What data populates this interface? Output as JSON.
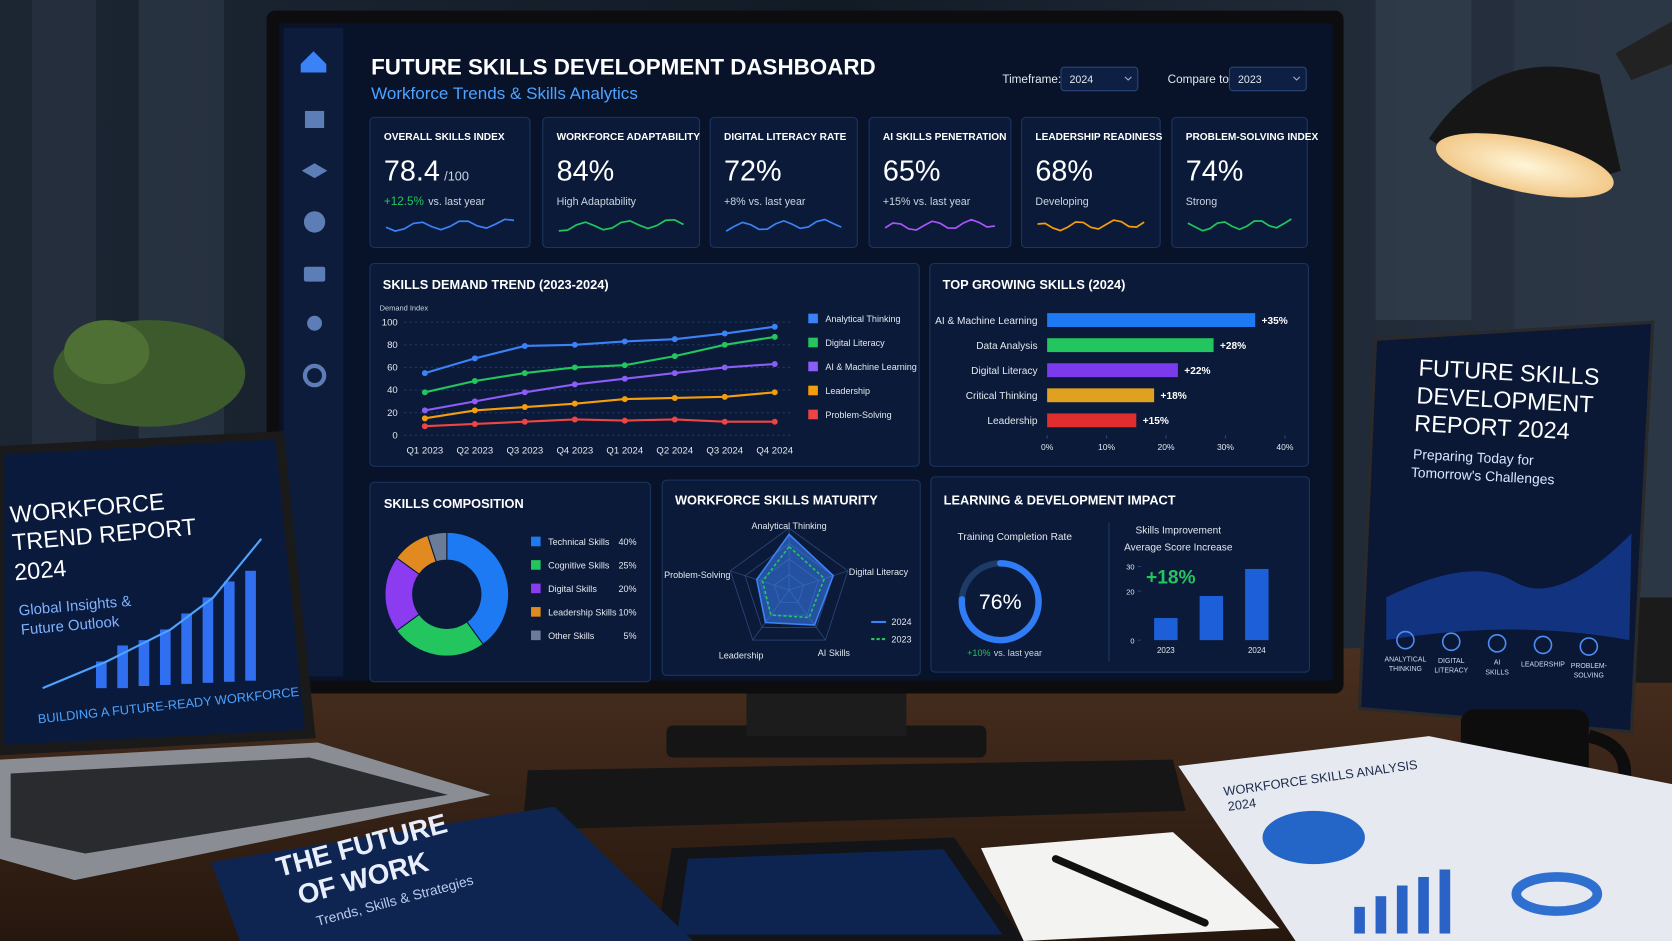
{
  "dashboard": {
    "title": "FUTURE SKILLS DEVELOPMENT DASHBOARD",
    "subtitle": "Workforce Trends & Skills Analytics",
    "filters": [
      {
        "label": "Timeframe:",
        "value": "2024"
      },
      {
        "label": "Compare to:",
        "value": "2023"
      }
    ],
    "kpis": [
      {
        "label": "OVERALL SKILLS INDEX",
        "value": "78.4",
        "unit": "/100",
        "delta": "+12.5%",
        "note": "vs. last year",
        "color": "#3b82f6"
      },
      {
        "label": "WORKFORCE ADAPTABILITY",
        "value": "84%",
        "note": "High Adaptability",
        "color": "#22c55e"
      },
      {
        "label": "DIGITAL LITERACY RATE",
        "value": "72%",
        "note": "+8% vs. last year",
        "color": "#3b82f6"
      },
      {
        "label": "AI SKILLS PENETRATION",
        "value": "65%",
        "note": "+15% vs. last year",
        "color": "#a855f7"
      },
      {
        "label": "LEADERSHIP READINESS",
        "value": "68%",
        "note": "Developing",
        "color": "#f59e0b"
      },
      {
        "label": "PROBLEM-SOLVING INDEX",
        "value": "74%",
        "note": "Strong",
        "color": "#22c55e"
      }
    ],
    "trend": {
      "type": "line",
      "title": "SKILLS DEMAND TREND (2023-2024)",
      "y_label": "Demand Index",
      "categories": [
        "Q1 2023",
        "Q2 2023",
        "Q3 2023",
        "Q4 2023",
        "Q1 2024",
        "Q2 2024",
        "Q3 2024",
        "Q4 2024"
      ],
      "ylim": [
        0,
        100
      ],
      "yticks": [
        0,
        20,
        40,
        60,
        80,
        100
      ],
      "series": [
        {
          "name": "Analytical Thinking",
          "color": "#3b82f6",
          "values": [
            55,
            68,
            79,
            80,
            83,
            85,
            90,
            96
          ]
        },
        {
          "name": "Digital Literacy",
          "color": "#22c55e",
          "values": [
            38,
            48,
            55,
            60,
            62,
            70,
            80,
            87
          ]
        },
        {
          "name": "AI & Machine Learning",
          "color": "#8b5cf6",
          "values": [
            22,
            30,
            38,
            45,
            50,
            55,
            60,
            63
          ]
        },
        {
          "name": "Leadership",
          "color": "#f59e0b",
          "values": [
            15,
            22,
            25,
            28,
            32,
            33,
            34,
            38
          ]
        },
        {
          "name": "Problem-Solving",
          "color": "#ef4444",
          "values": [
            8,
            10,
            12,
            14,
            13,
            14,
            12,
            12
          ]
        }
      ]
    },
    "growth": {
      "type": "bar",
      "title": "TOP GROWING SKILLS (2024)",
      "categories": [
        "AI & Machine Learning",
        "Data Analysis",
        "Digital Literacy",
        "Critical Thinking",
        "Leadership"
      ],
      "values": [
        35,
        28,
        22,
        18,
        15
      ],
      "value_labels": [
        "+35%",
        "+28%",
        "+22%",
        "+18%",
        "+15%"
      ],
      "colors": [
        "#1d7af3",
        "#22c55e",
        "#7c3aed",
        "#e0a020",
        "#e02d2d"
      ],
      "xlim": [
        0,
        40
      ],
      "xticks": [
        {
          "value": 0,
          "label": "0%"
        },
        {
          "value": 10,
          "label": "10%"
        },
        {
          "value": 20,
          "label": "20%"
        },
        {
          "value": 30,
          "label": "30%"
        },
        {
          "value": 40,
          "label": "40%"
        }
      ]
    },
    "composition": {
      "type": "pie",
      "title": "SKILLS COMPOSITION",
      "categories": [
        "Technical Skills",
        "Cognitive Skills",
        "Digital Skills",
        "Leadership Skills",
        "Other Skills"
      ],
      "values": [
        40,
        25,
        20,
        10,
        5
      ],
      "value_labels": [
        "40%",
        "25%",
        "20%",
        "10%",
        "5%"
      ],
      "colors": [
        "#1d7af3",
        "#22c55e",
        "#8b3cf0",
        "#e08a20",
        "#6b7c99"
      ]
    },
    "maturity": {
      "type": "radar",
      "title": "WORKFORCE SKILLS MATURITY",
      "axes": [
        "Analytical Thinking",
        "Digital Literacy",
        "AI Skills",
        "Leadership",
        "Problem-Solving"
      ],
      "rlim": [
        0,
        100
      ],
      "series": [
        {
          "name": "2024",
          "color": "#3b82f6",
          "values": [
            90,
            75,
            70,
            65,
            55
          ]
        },
        {
          "name": "2023",
          "color": "#22c55e",
          "values": [
            70,
            60,
            55,
            50,
            45
          ]
        }
      ]
    },
    "impact": {
      "title": "LEARNING & DEVELOPMENT IMPACT",
      "completion": {
        "label": "Training Completion Rate",
        "value": 76,
        "value_label": "76%",
        "lim": [
          0,
          100
        ],
        "delta": "+10%",
        "note": "vs. last year"
      },
      "improvement": {
        "type": "bar",
        "title_lines": [
          "Skills Improvement",
          "Average Score Increase"
        ],
        "headline": "+18%",
        "categories": [
          "2023",
          null,
          "2024"
        ],
        "values": [
          9,
          18,
          29
        ],
        "ylim": [
          0,
          30
        ],
        "yticks": [
          0,
          20,
          30
        ],
        "color": "#1d5fd8"
      }
    }
  },
  "laptop": {
    "title_lines": [
      "WORKFORCE",
      "TREND REPORT",
      "2024"
    ],
    "subtitle_lines": [
      "Global Insights &",
      "Future Outlook"
    ],
    "footer": "BUILDING A FUTURE-READY WORKFORCE"
  },
  "report": {
    "title_lines": [
      "FUTURE SKILLS",
      "DEVELOPMENT",
      "REPORT 2024"
    ],
    "subtitle_lines": [
      "Preparing Today for",
      "Tomorrow's Challenges"
    ],
    "icons": [
      [
        "ANALYTICAL",
        "THINKING"
      ],
      [
        "DIGITAL",
        "LITERACY"
      ],
      [
        "AI",
        "SKILLS"
      ],
      [
        "LEADERSHIP"
      ],
      [
        "PROBLEM-",
        "SOLVING"
      ]
    ]
  },
  "book": {
    "title_lines": [
      "THE FUTURE",
      "OF WORK"
    ],
    "subtitle": "Trends, Skills & Strategies"
  },
  "paper": {
    "title_lines": [
      "WORKFORCE SKILLS ANALYSIS",
      "2024"
    ]
  }
}
